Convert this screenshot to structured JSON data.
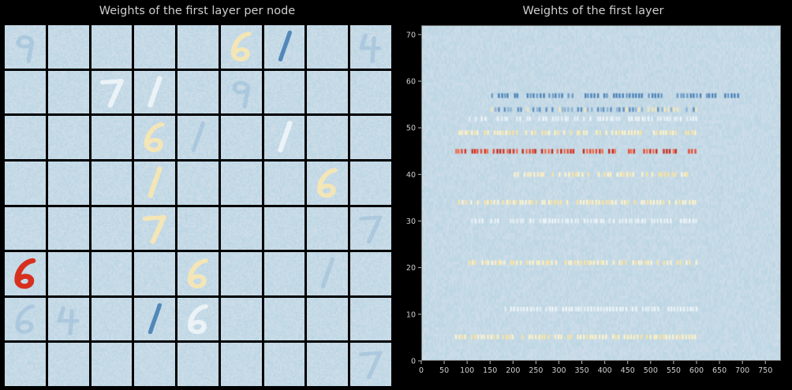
{
  "chart_data": [
    {
      "type": "image-grid",
      "title": "Weights of the first layer per node",
      "rows": 8,
      "cols": 9,
      "colormap": [
        "#2166ac",
        "#c9dfeb",
        "#fdf2c4",
        "#d7301f"
      ],
      "highlighted_cells": [
        {
          "row": 0,
          "col": 5,
          "digit": "6",
          "tone": "warm"
        },
        {
          "row": 0,
          "col": 6,
          "digit": "1",
          "tone": "cool"
        },
        {
          "row": 0,
          "col": 8,
          "digit": "4",
          "tone": "faint"
        },
        {
          "row": 0,
          "col": 0,
          "digit": "9",
          "tone": "faint"
        },
        {
          "row": 1,
          "col": 2,
          "digit": "7",
          "tone": "pale"
        },
        {
          "row": 1,
          "col": 3,
          "digit": "1",
          "tone": "pale"
        },
        {
          "row": 1,
          "col": 5,
          "digit": "9",
          "tone": "faint"
        },
        {
          "row": 2,
          "col": 3,
          "digit": "6",
          "tone": "warm"
        },
        {
          "row": 2,
          "col": 4,
          "digit": "1",
          "tone": "faint"
        },
        {
          "row": 2,
          "col": 6,
          "digit": "1",
          "tone": "pale"
        },
        {
          "row": 3,
          "col": 3,
          "digit": "1",
          "tone": "warm"
        },
        {
          "row": 3,
          "col": 7,
          "digit": "6",
          "tone": "warm"
        },
        {
          "row": 4,
          "col": 3,
          "digit": "7",
          "tone": "warm"
        },
        {
          "row": 4,
          "col": 8,
          "digit": "7",
          "tone": "faint"
        },
        {
          "row": 5,
          "col": 0,
          "digit": "6",
          "tone": "hot"
        },
        {
          "row": 5,
          "col": 4,
          "digit": "6",
          "tone": "warm"
        },
        {
          "row": 5,
          "col": 7,
          "digit": "1",
          "tone": "faint"
        },
        {
          "row": 6,
          "col": 0,
          "digit": "6",
          "tone": "faint"
        },
        {
          "row": 6,
          "col": 1,
          "digit": "4",
          "tone": "faint"
        },
        {
          "row": 6,
          "col": 3,
          "digit": "1",
          "tone": "cool"
        },
        {
          "row": 6,
          "col": 4,
          "digit": "6",
          "tone": "pale"
        },
        {
          "row": 7,
          "col": 8,
          "digit": "7",
          "tone": "faint"
        }
      ]
    },
    {
      "type": "heatmap",
      "title": "Weights of the first layer",
      "xlim": [
        0,
        784
      ],
      "ylim": [
        0,
        72
      ],
      "x_ticks": [
        0,
        50,
        100,
        150,
        200,
        250,
        300,
        350,
        400,
        450,
        500,
        550,
        600,
        650,
        700,
        750
      ],
      "y_ticks": [
        0,
        10,
        20,
        30,
        40,
        50,
        60,
        70
      ],
      "highlighted_rows": [
        {
          "row": 45,
          "level": "hot",
          "x_range": [
            70,
            600
          ]
        },
        {
          "row": 57,
          "level": "cool",
          "x_range": [
            150,
            690
          ]
        },
        {
          "row": 49,
          "level": "warm",
          "x_range": [
            70,
            600
          ]
        },
        {
          "row": 52,
          "level": "pale",
          "x_range": [
            100,
            600
          ]
        },
        {
          "row": 54,
          "level": "mixed",
          "x_range": [
            150,
            600
          ]
        },
        {
          "row": 40,
          "level": "warm",
          "x_range": [
            200,
            600
          ]
        },
        {
          "row": 34,
          "level": "warm",
          "x_range": [
            70,
            600
          ]
        },
        {
          "row": 30,
          "level": "pale",
          "x_range": [
            100,
            600
          ]
        },
        {
          "row": 21,
          "level": "warm",
          "x_range": [
            100,
            600
          ]
        },
        {
          "row": 11,
          "level": "pale",
          "x_range": [
            150,
            600
          ]
        },
        {
          "row": 5,
          "level": "warm",
          "x_range": [
            70,
            600
          ]
        }
      ]
    }
  ]
}
